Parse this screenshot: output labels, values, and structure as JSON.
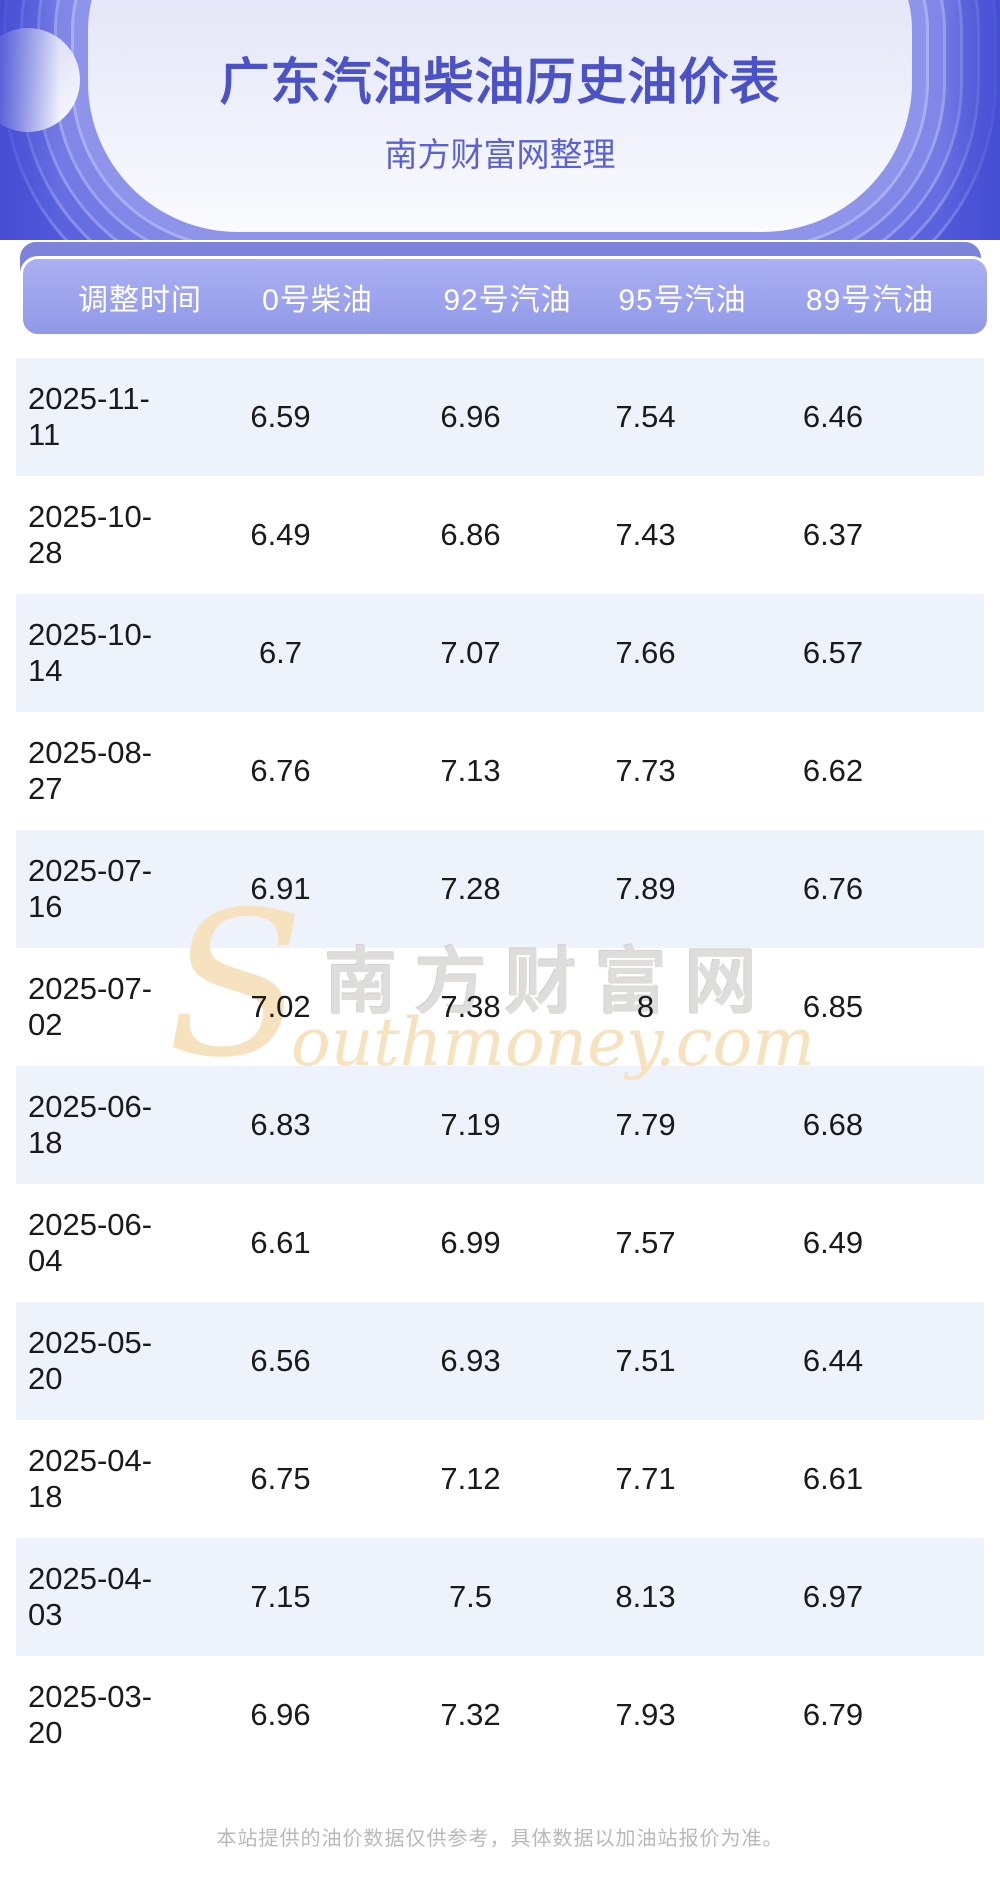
{
  "page": {
    "title": "广东汽油柴油历史油价表",
    "subtitle": "南方财富网整理",
    "footer_note": "本站提供的油价数据仅供参考，具体数据以加油站报价为准。"
  },
  "colors": {
    "hero_purple": "#5158d9",
    "title_text": "#4a52c6",
    "subtitle_text": "#5a61d4",
    "band_back": "#7c83da",
    "band_main_top": "#abb0f2",
    "band_main_bottom": "#9199e8",
    "header_text": "#ffffff",
    "row_alt_bg": "#edf2fb",
    "row_bg": "#ffffff",
    "row_text": "#1a1a1a",
    "footer_text": "#b9b9b9",
    "watermark_cream": "#f7e2c0",
    "watermark_gray": "#dedddb"
  },
  "watermark": {
    "s_letter": "S",
    "cn_text": "南方财富网",
    "en_text": "outhmoney.com"
  },
  "table": {
    "columns": [
      "调整时间",
      "0号柴油",
      "92号汽油",
      "95号汽油",
      "89号汽油"
    ],
    "rows": [
      [
        "2025-11-11",
        "6.59",
        "6.96",
        "7.54",
        "6.46"
      ],
      [
        "2025-10-28",
        "6.49",
        "6.86",
        "7.43",
        "6.37"
      ],
      [
        "2025-10-14",
        "6.7",
        "7.07",
        "7.66",
        "6.57"
      ],
      [
        "2025-08-27",
        "6.76",
        "7.13",
        "7.73",
        "6.62"
      ],
      [
        "2025-07-16",
        "6.91",
        "7.28",
        "7.89",
        "6.76"
      ],
      [
        "2025-07-02",
        "7.02",
        "7.38",
        "8",
        "6.85"
      ],
      [
        "2025-06-18",
        "6.83",
        "7.19",
        "7.79",
        "6.68"
      ],
      [
        "2025-06-04",
        "6.61",
        "6.99",
        "7.57",
        "6.49"
      ],
      [
        "2025-05-20",
        "6.56",
        "6.93",
        "7.51",
        "6.44"
      ],
      [
        "2025-04-18",
        "6.75",
        "7.12",
        "7.71",
        "6.61"
      ],
      [
        "2025-04-03",
        "7.15",
        "7.5",
        "8.13",
        "6.97"
      ],
      [
        "2025-03-20",
        "6.96",
        "7.32",
        "7.93",
        "6.79"
      ]
    ]
  }
}
